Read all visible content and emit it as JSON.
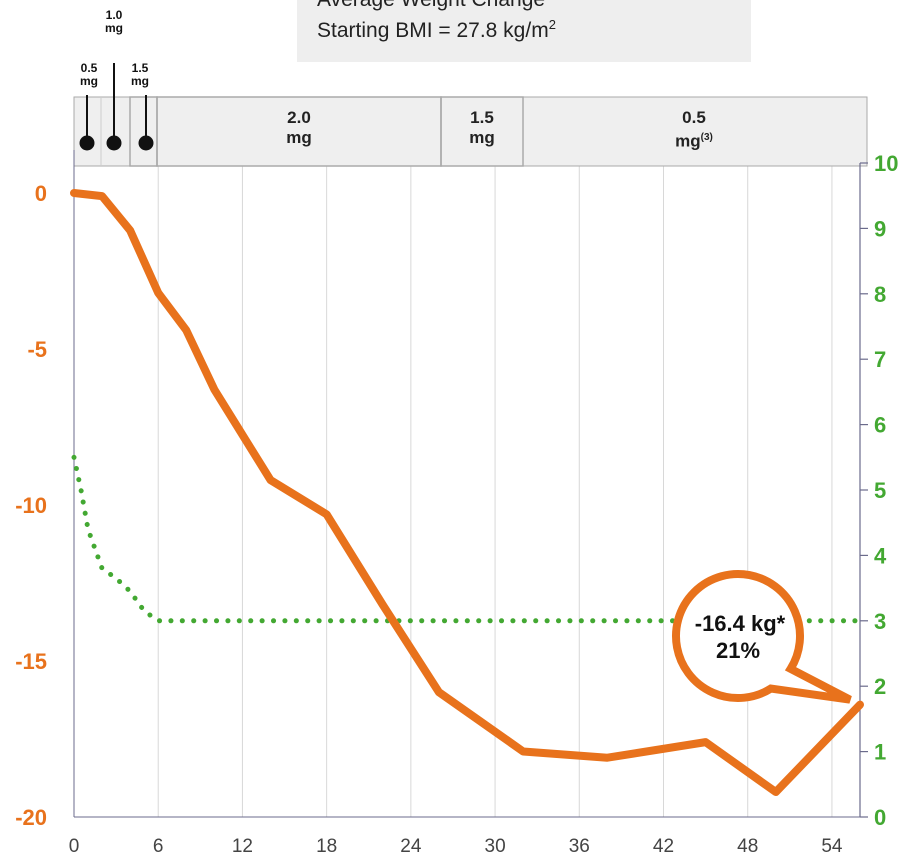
{
  "header": {
    "line1": "Average Weight Change",
    "line2_prefix": "Starting BMI = 27.8  kg/m",
    "line2_sup": "2"
  },
  "titration": [
    {
      "label": "0.5\nmg",
      "week": 1
    },
    {
      "label": "1.0\nmg",
      "week": 3
    },
    {
      "label": "1.5\nmg",
      "week": 5
    }
  ],
  "dose_bands": [
    {
      "label": "2.0\nmg",
      "start": 6,
      "end": 26
    },
    {
      "label": "1.5\nmg",
      "start": 26,
      "end": 32
    },
    {
      "label": "0.5\nmg",
      "sup": "(3)",
      "start": 32,
      "end": 56
    }
  ],
  "callout": {
    "line1": "-16.4 kg*",
    "line2": "21%"
  },
  "colors": {
    "weight": "#e8721c",
    "secondary": "#43a832",
    "band_fill": "#efefef",
    "band_border": "#aaaaaa",
    "axis": "#6b6b8c"
  },
  "chart_data": {
    "type": "line",
    "x_ticks": [
      0,
      6,
      12,
      18,
      24,
      30,
      36,
      42,
      48,
      54
    ],
    "xlim": [
      0,
      56
    ],
    "y_left": {
      "ticks": [
        0,
        -5,
        -10,
        -15,
        -20
      ],
      "ylim": [
        -20,
        0
      ]
    },
    "y_right": {
      "ticks": [
        0,
        1,
        2,
        3,
        4,
        5,
        6,
        7,
        8,
        9,
        10
      ],
      "ylim": [
        0,
        10
      ]
    },
    "series": [
      {
        "axis": "left",
        "style": "solid",
        "x": [
          0,
          2,
          4,
          6,
          8,
          10,
          14,
          18,
          22,
          26,
          32,
          38,
          45,
          50,
          56
        ],
        "y": [
          0,
          -0.1,
          -1.2,
          -3.2,
          -4.4,
          -6.3,
          -9.2,
          -10.3,
          -13.2,
          -16.0,
          -17.9,
          -18.1,
          -17.6,
          -19.2,
          -16.4
        ]
      },
      {
        "axis": "right",
        "style": "dotted",
        "x": [
          0,
          0.5,
          1,
          2,
          3,
          4,
          5,
          6,
          10,
          20,
          30,
          40,
          50,
          56
        ],
        "y": [
          5.5,
          5.0,
          4.4,
          3.8,
          3.65,
          3.45,
          3.15,
          3.0,
          3.0,
          3.0,
          3.0,
          3.0,
          3.0,
          3.0
        ]
      }
    ]
  }
}
